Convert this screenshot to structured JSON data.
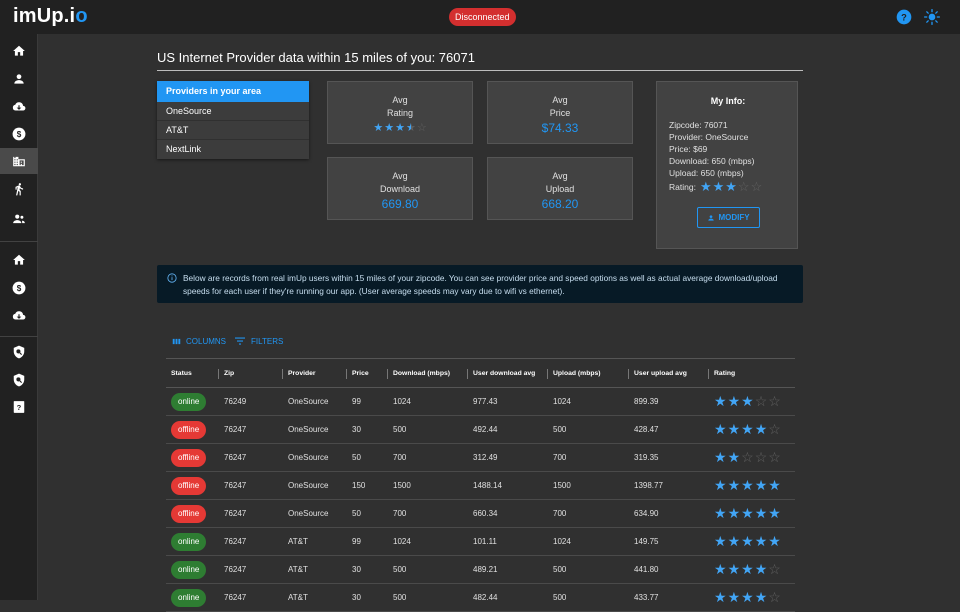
{
  "app": {
    "logo_main": "imUp.i",
    "logo_accent": "o",
    "connection_status": "Disconnected"
  },
  "colors": {
    "accent": "#2196f3",
    "online": "#2e7d32",
    "offline": "#e53935",
    "disconnected": "#d32f2f"
  },
  "sidebar": {
    "items": [
      {
        "icon": "home-icon"
      },
      {
        "icon": "person-icon"
      },
      {
        "icon": "cloud-download-icon"
      },
      {
        "icon": "dollar-icon"
      },
      {
        "icon": "building-icon"
      },
      {
        "icon": "walking-icon"
      },
      {
        "icon": "group-icon"
      },
      {
        "icon": "home-icon"
      },
      {
        "icon": "dollar-icon"
      },
      {
        "icon": "cloud-download-icon"
      },
      {
        "icon": "search-shield-icon"
      },
      {
        "icon": "search-shield-icon"
      },
      {
        "icon": "help-box-icon"
      }
    ],
    "active_index": 4
  },
  "page": {
    "title": "US Internet Provider data within 15 miles of you: 76071"
  },
  "providers": {
    "heading": "Providers in your area",
    "items": [
      "OneSource",
      "AT&T",
      "NextLink"
    ]
  },
  "stats": {
    "rating_l1": "Avg",
    "rating_l2": "Rating",
    "rating_value": 3.5,
    "price_l1": "Avg",
    "price_l2": "Price",
    "price_value": "$74.33",
    "download_l1": "Avg",
    "download_l2": "Download",
    "download_value": "669.80",
    "upload_l1": "Avg",
    "upload_l2": "Upload",
    "upload_value": "668.20"
  },
  "my_info": {
    "title": "My Info:",
    "zipcode": "Zipcode: 76071",
    "provider": "Provider: OneSource",
    "price": "Price: $69",
    "download": "Download: 650 (mbps)",
    "upload": "Upload: 650 (mbps)",
    "rating_label": "Rating:",
    "rating_value": 3,
    "modify_label": "MODIFY"
  },
  "alert": {
    "text": "Below are records from real imUp users within 15 miles of your zipcode. You can see provider price and speed options as well as actual average download/upload speeds for each user if they're running our app. (User average speeds may vary due to wifi vs ethernet)."
  },
  "grid": {
    "toolbar": {
      "columns_label": "COLUMNS",
      "filters_label": "FILTERS"
    },
    "columns": [
      "Status",
      "Zip",
      "Provider",
      "Price",
      "Download (mbps)",
      "User download avg",
      "Upload (mbps)",
      "User upload avg",
      "Rating"
    ],
    "rows": [
      {
        "status": "online",
        "zip": "76249",
        "provider": "OneSource",
        "price": "99",
        "download": "1024",
        "user_download_avg": "977.43",
        "upload": "1024",
        "user_upload_avg": "899.39",
        "rating": 3
      },
      {
        "status": "offline",
        "zip": "76247",
        "provider": "OneSource",
        "price": "30",
        "download": "500",
        "user_download_avg": "492.44",
        "upload": "500",
        "user_upload_avg": "428.47",
        "rating": 4
      },
      {
        "status": "offline",
        "zip": "76247",
        "provider": "OneSource",
        "price": "50",
        "download": "700",
        "user_download_avg": "312.49",
        "upload": "700",
        "user_upload_avg": "319.35",
        "rating": 2
      },
      {
        "status": "offline",
        "zip": "76247",
        "provider": "OneSource",
        "price": "150",
        "download": "1500",
        "user_download_avg": "1488.14",
        "upload": "1500",
        "user_upload_avg": "1398.77",
        "rating": 5
      },
      {
        "status": "offline",
        "zip": "76247",
        "provider": "OneSource",
        "price": "50",
        "download": "700",
        "user_download_avg": "660.34",
        "upload": "700",
        "user_upload_avg": "634.90",
        "rating": 5
      },
      {
        "status": "online",
        "zip": "76247",
        "provider": "AT&T",
        "price": "99",
        "download": "1024",
        "user_download_avg": "101.11",
        "upload": "1024",
        "user_upload_avg": "149.75",
        "rating": 5
      },
      {
        "status": "online",
        "zip": "76247",
        "provider": "AT&T",
        "price": "30",
        "download": "500",
        "user_download_avg": "489.21",
        "upload": "500",
        "user_upload_avg": "441.80",
        "rating": 4
      },
      {
        "status": "online",
        "zip": "76247",
        "provider": "AT&T",
        "price": "30",
        "download": "500",
        "user_download_avg": "482.44",
        "upload": "500",
        "user_upload_avg": "433.77",
        "rating": 4
      }
    ]
  }
}
